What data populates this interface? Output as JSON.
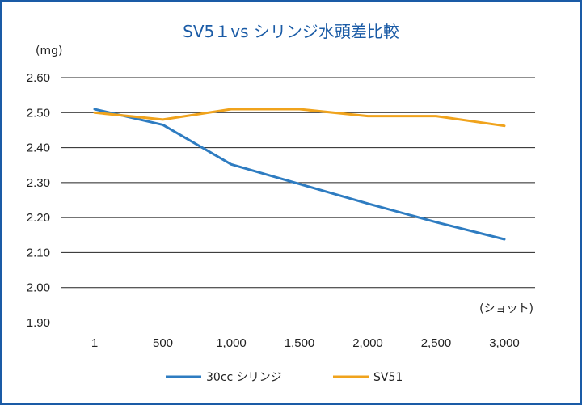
{
  "chart_data": {
    "type": "line",
    "title": "SV5１vs シリンジ水頭差比較",
    "ylabel": "(mg)",
    "xlabel": "(ショット)",
    "categories": [
      "1",
      "500",
      "1,000",
      "1,500",
      "2,000",
      "2,500",
      "3,000"
    ],
    "ylim": [
      1.9,
      2.6
    ],
    "yticks": [
      "1.90",
      "2.00",
      "2.10",
      "2.20",
      "2.30",
      "2.40",
      "2.50",
      "2.60"
    ],
    "grid": "horizontal",
    "legend_position": "bottom",
    "series": [
      {
        "name": "30cc シリンジ",
        "color": "#2e7cc1",
        "values": [
          2.51,
          2.465,
          2.352,
          2.296,
          2.24,
          2.187,
          2.138
        ]
      },
      {
        "name": "SV51",
        "color": "#f0a31c",
        "values": [
          2.5,
          2.48,
          2.51,
          2.51,
          2.49,
          2.49,
          2.462
        ]
      }
    ]
  }
}
